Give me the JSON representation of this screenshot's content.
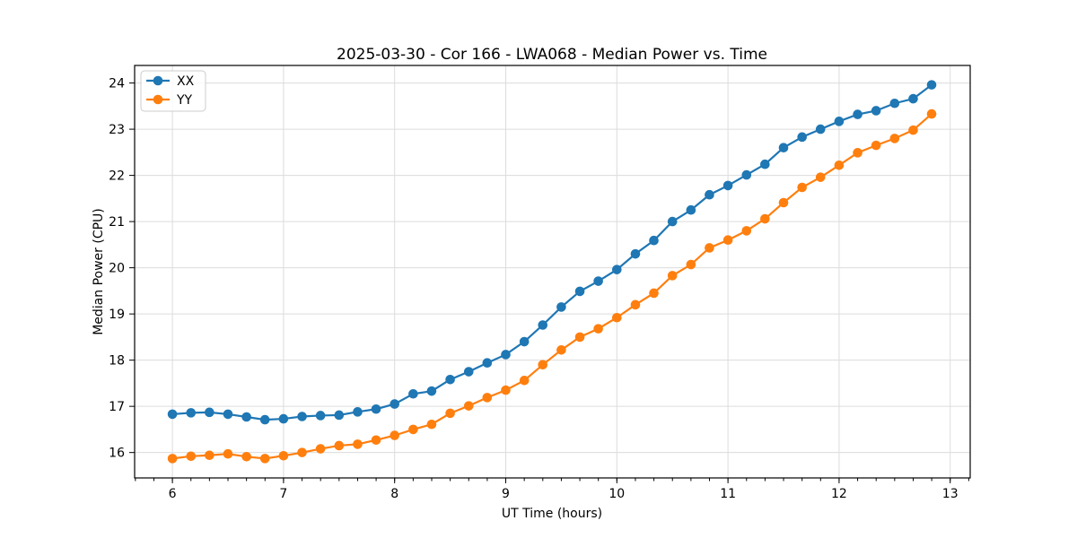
{
  "figure_background": "#ffffff",
  "chart_data": {
    "type": "line",
    "title": "2025-03-30 - Cor 166 - LWA068 - Median Power vs. Time",
    "xlabel": "UT Time (hours)",
    "ylabel": "Median Power (CPU)",
    "grid": true,
    "legend_position": "upper-left",
    "marker": "circle",
    "xlim": [
      5.66,
      13.18
    ],
    "ylim": [
      15.45,
      24.38
    ],
    "x_ticks": [
      6,
      7,
      8,
      9,
      10,
      11,
      12,
      13
    ],
    "x_minor_tick_step": 0.16667,
    "y_ticks": [
      16,
      17,
      18,
      19,
      20,
      21,
      22,
      23,
      24
    ],
    "x": [
      6.0,
      6.167,
      6.333,
      6.5,
      6.667,
      6.833,
      7.0,
      7.167,
      7.333,
      7.5,
      7.667,
      7.833,
      8.0,
      8.167,
      8.333,
      8.5,
      8.667,
      8.833,
      9.0,
      9.167,
      9.333,
      9.5,
      9.667,
      9.833,
      10.0,
      10.167,
      10.333,
      10.5,
      10.667,
      10.833,
      11.0,
      11.167,
      11.333,
      11.5,
      11.667,
      11.833,
      12.0,
      12.167,
      12.333,
      12.5,
      12.667,
      12.833
    ],
    "series": [
      {
        "name": "XX",
        "color": "#1f77b4",
        "values": [
          16.83,
          16.86,
          16.87,
          16.83,
          16.77,
          16.71,
          16.73,
          16.78,
          16.8,
          16.81,
          16.88,
          16.94,
          17.05,
          17.27,
          17.33,
          17.58,
          17.75,
          17.94,
          18.12,
          18.4,
          18.76,
          19.15,
          19.49,
          19.71,
          19.96,
          20.3,
          20.59,
          21.0,
          21.25,
          21.58,
          21.78,
          22.01,
          22.24,
          22.6,
          22.83,
          23.0,
          23.17,
          23.32,
          23.4,
          23.56,
          23.66,
          23.96
        ]
      },
      {
        "name": "YY",
        "color": "#ff7f0e",
        "values": [
          15.87,
          15.92,
          15.94,
          15.97,
          15.91,
          15.87,
          15.93,
          16.0,
          16.08,
          16.15,
          16.18,
          16.27,
          16.37,
          16.5,
          16.61,
          16.85,
          17.01,
          17.19,
          17.35,
          17.56,
          17.9,
          18.22,
          18.5,
          18.68,
          18.92,
          19.2,
          19.45,
          19.83,
          20.07,
          20.43,
          20.6,
          20.8,
          21.06,
          21.41,
          21.74,
          21.96,
          22.22,
          22.49,
          22.65,
          22.8,
          22.98,
          23.33
        ]
      }
    ]
  }
}
